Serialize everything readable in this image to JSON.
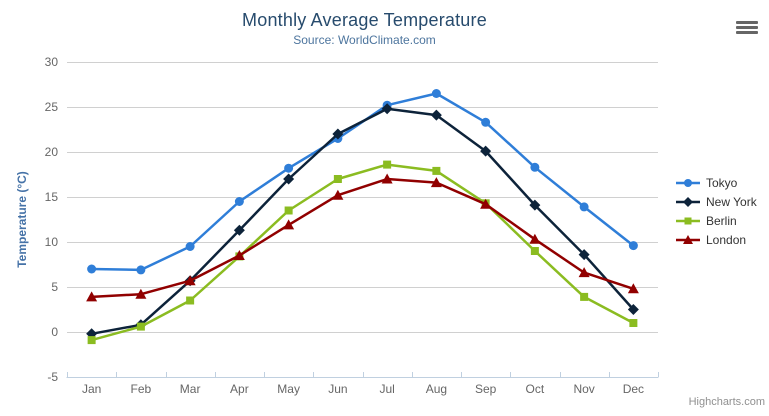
{
  "header": {
    "title": "Monthly Average Temperature",
    "subtitle": "Source: WorldClimate.com"
  },
  "credit": "Highcharts.com",
  "icons": {
    "export_menu": "hamburger-menu-icon"
  },
  "colors": {
    "title_text": "#274b6d",
    "subtitle_text": "#4d759e",
    "axis_title_text": "#4572a7",
    "tick_label_text": "#666666",
    "gridline": "#d0d0d0",
    "axis_line": "#c0d0e0",
    "legend_text": "#333333",
    "credit_text": "#909090",
    "burger_icon": "#666666"
  },
  "chart_data": {
    "type": "line",
    "title": "Monthly Average Temperature",
    "subtitle": "Source: WorldClimate.com",
    "xlabel": "",
    "ylabel": "Temperature (°C)",
    "ylim": [
      -5,
      30
    ],
    "ytick_step": 5,
    "grid": true,
    "legend_position": "right",
    "categories": [
      "Jan",
      "Feb",
      "Mar",
      "Apr",
      "May",
      "Jun",
      "Jul",
      "Aug",
      "Sep",
      "Oct",
      "Nov",
      "Dec"
    ],
    "series": [
      {
        "name": "Tokyo",
        "color": "#2f7ed8",
        "marker": "circle",
        "values": [
          7.0,
          6.9,
          9.5,
          14.5,
          18.2,
          21.5,
          25.2,
          26.5,
          23.3,
          18.3,
          13.9,
          9.6
        ]
      },
      {
        "name": "New York",
        "color": "#0d233a",
        "marker": "diamond",
        "values": [
          -0.2,
          0.8,
          5.7,
          11.3,
          17.0,
          22.0,
          24.8,
          24.1,
          20.1,
          14.1,
          8.6,
          2.5
        ]
      },
      {
        "name": "Berlin",
        "color": "#8bbc21",
        "marker": "square",
        "values": [
          -0.9,
          0.6,
          3.5,
          8.4,
          13.5,
          17.0,
          18.6,
          17.9,
          14.3,
          9.0,
          3.9,
          1.0
        ]
      },
      {
        "name": "London",
        "color": "#910000",
        "marker": "triangle",
        "values": [
          3.9,
          4.2,
          5.7,
          8.5,
          11.9,
          15.2,
          17.0,
          16.6,
          14.2,
          10.3,
          6.6,
          4.8
        ]
      }
    ]
  }
}
